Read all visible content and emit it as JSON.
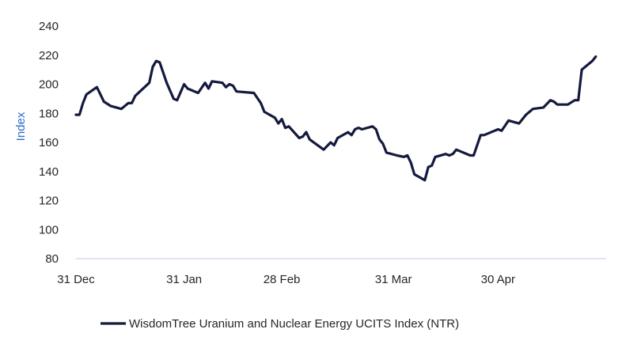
{
  "chart_data": {
    "type": "line",
    "title": "",
    "xlabel": "",
    "ylabel": "Index",
    "ylim": [
      80,
      240
    ],
    "yticks": [
      80,
      100,
      120,
      140,
      160,
      180,
      200,
      220,
      240
    ],
    "xlim": [
      "2023-12-31",
      "2024-05-31"
    ],
    "x_tick_labels": [
      {
        "label": "31 Dec",
        "date": "2023-12-31"
      },
      {
        "label": "31 Jan",
        "date": "2024-01-31"
      },
      {
        "label": "28 Feb",
        "date": "2024-02-28"
      },
      {
        "label": "31 Mar",
        "date": "2024-03-31"
      },
      {
        "label": "30 Apr",
        "date": "2024-04-30"
      }
    ],
    "grid": false,
    "legend_position": "bottom",
    "colors": {
      "series": "#141a3d",
      "axis_title": "#2e6fc7",
      "axis_line": "#c9d3e8"
    },
    "series": [
      {
        "name": "WisdomTree Uranium and Nuclear Energy UCITS Index (NTR)",
        "points": [
          [
            "2023-12-31",
            179
          ],
          [
            "2024-01-01",
            179
          ],
          [
            "2024-01-02",
            187
          ],
          [
            "2024-01-03",
            193
          ],
          [
            "2024-01-06",
            198
          ],
          [
            "2024-01-08",
            188
          ],
          [
            "2024-01-10",
            185
          ],
          [
            "2024-01-13",
            183
          ],
          [
            "2024-01-15",
            187
          ],
          [
            "2024-01-16",
            187
          ],
          [
            "2024-01-17",
            192
          ],
          [
            "2024-01-21",
            201
          ],
          [
            "2024-01-22",
            212
          ],
          [
            "2024-01-23",
            216
          ],
          [
            "2024-01-24",
            215
          ],
          [
            "2024-01-26",
            201
          ],
          [
            "2024-01-28",
            190
          ],
          [
            "2024-01-29",
            189
          ],
          [
            "2024-01-31",
            200
          ],
          [
            "2024-02-01",
            197
          ],
          [
            "2024-02-04",
            194
          ],
          [
            "2024-02-06",
            201
          ],
          [
            "2024-02-07",
            197
          ],
          [
            "2024-02-08",
            202
          ],
          [
            "2024-02-11",
            201
          ],
          [
            "2024-02-12",
            198
          ],
          [
            "2024-02-13",
            200
          ],
          [
            "2024-02-14",
            199
          ],
          [
            "2024-02-15",
            195
          ],
          [
            "2024-02-20",
            194
          ],
          [
            "2024-02-22",
            187
          ],
          [
            "2024-02-23",
            181
          ],
          [
            "2024-02-26",
            177
          ],
          [
            "2024-02-27",
            173
          ],
          [
            "2024-02-28",
            176
          ],
          [
            "2024-02-29",
            170
          ],
          [
            "2024-03-01",
            171
          ],
          [
            "2024-03-04",
            163
          ],
          [
            "2024-03-05",
            164
          ],
          [
            "2024-03-06",
            167
          ],
          [
            "2024-03-07",
            162
          ],
          [
            "2024-03-11",
            155
          ],
          [
            "2024-03-13",
            160
          ],
          [
            "2024-03-14",
            158
          ],
          [
            "2024-03-15",
            163
          ],
          [
            "2024-03-18",
            167
          ],
          [
            "2024-03-19",
            165
          ],
          [
            "2024-03-20",
            169
          ],
          [
            "2024-03-21",
            170
          ],
          [
            "2024-03-22",
            169
          ],
          [
            "2024-03-25",
            171
          ],
          [
            "2024-03-26",
            169
          ],
          [
            "2024-03-27",
            162
          ],
          [
            "2024-03-28",
            159
          ],
          [
            "2024-03-29",
            153
          ],
          [
            "2024-04-01",
            151
          ],
          [
            "2024-04-03",
            150
          ],
          [
            "2024-04-04",
            151
          ],
          [
            "2024-04-05",
            146
          ],
          [
            "2024-04-06",
            138
          ],
          [
            "2024-04-09",
            134
          ],
          [
            "2024-04-10",
            143
          ],
          [
            "2024-04-11",
            144
          ],
          [
            "2024-04-12",
            150
          ],
          [
            "2024-04-15",
            152
          ],
          [
            "2024-04-16",
            151
          ],
          [
            "2024-04-17",
            152
          ],
          [
            "2024-04-18",
            155
          ],
          [
            "2024-04-22",
            151
          ],
          [
            "2024-04-23",
            151
          ],
          [
            "2024-04-25",
            165
          ],
          [
            "2024-04-26",
            165
          ],
          [
            "2024-04-29",
            168
          ],
          [
            "2024-04-30",
            169
          ],
          [
            "2024-05-01",
            168
          ],
          [
            "2024-05-03",
            175
          ],
          [
            "2024-05-06",
            173
          ],
          [
            "2024-05-08",
            179
          ],
          [
            "2024-05-10",
            183
          ],
          [
            "2024-05-13",
            184
          ],
          [
            "2024-05-15",
            189
          ],
          [
            "2024-05-16",
            188
          ],
          [
            "2024-05-17",
            186
          ],
          [
            "2024-05-20",
            186
          ],
          [
            "2024-05-22",
            189
          ],
          [
            "2024-05-23",
            189
          ],
          [
            "2024-05-24",
            210
          ],
          [
            "2024-05-27",
            216
          ],
          [
            "2024-05-28",
            219
          ]
        ]
      }
    ]
  }
}
